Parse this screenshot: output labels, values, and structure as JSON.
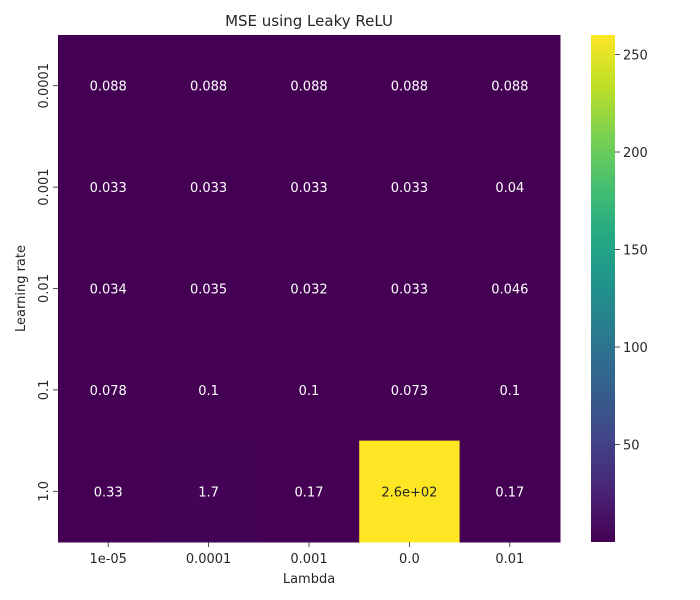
{
  "chart_data": {
    "type": "heatmap",
    "title": "MSE using Leaky ReLU",
    "xlabel": "Lambda",
    "ylabel": "Learning rate",
    "x_categories": [
      "1e-05",
      "0.0001",
      "0.001",
      "0.0",
      "0.01"
    ],
    "y_categories": [
      "0.0001",
      "0.001",
      "0.01",
      "0.1",
      "1.0"
    ],
    "values": [
      [
        0.088,
        0.088,
        0.088,
        0.088,
        0.088
      ],
      [
        0.033,
        0.033,
        0.033,
        0.033,
        0.04
      ],
      [
        0.034,
        0.035,
        0.032,
        0.033,
        0.046
      ],
      [
        0.078,
        0.1,
        0.1,
        0.073,
        0.1
      ],
      [
        0.33,
        1.7,
        0.17,
        260,
        0.17
      ]
    ],
    "annotations": [
      [
        "0.088",
        "0.088",
        "0.088",
        "0.088",
        "0.088"
      ],
      [
        "0.033",
        "0.033",
        "0.033",
        "0.033",
        "0.04"
      ],
      [
        "0.034",
        "0.035",
        "0.032",
        "0.033",
        "0.046"
      ],
      [
        "0.078",
        "0.1",
        "0.1",
        "0.073",
        "0.1"
      ],
      [
        "0.33",
        "1.7",
        "0.17",
        "2.6e+02",
        "0.17"
      ]
    ],
    "colormap": "viridis",
    "colorbar": {
      "range": [
        0.032,
        260
      ],
      "ticks": [
        50,
        100,
        150,
        200,
        250
      ]
    },
    "grid": false,
    "legend": "colorbar-right"
  }
}
